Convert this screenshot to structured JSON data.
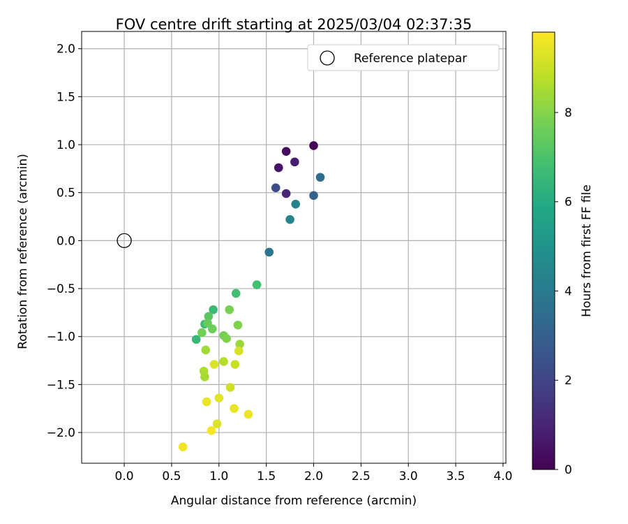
{
  "chart_data": {
    "type": "scatter",
    "title": "FOV centre drift starting at 2025/03/04 02:37:35",
    "xlabel": "Angular distance from reference (arcmin)",
    "ylabel": "Rotation from reference (arcmin)",
    "xlim": [
      -0.45,
      4.03
    ],
    "ylim": [
      -2.32,
      2.18
    ],
    "xticks": [
      0.0,
      0.5,
      1.0,
      1.5,
      2.0,
      2.5,
      3.0,
      3.5,
      4.0
    ],
    "xtick_labels": [
      "0.0",
      "0.5",
      "1.0",
      "1.5",
      "2.0",
      "2.5",
      "3.0",
      "3.5",
      "4.0"
    ],
    "yticks": [
      -2.0,
      -1.5,
      -1.0,
      -0.5,
      0.0,
      0.5,
      1.0,
      1.5,
      2.0
    ],
    "ytick_labels": [
      "−2.0",
      "−1.5",
      "−1.0",
      "−0.5",
      "0.0",
      "0.5",
      "1.0",
      "1.5",
      "2.0"
    ],
    "grid": true,
    "legend": {
      "position": "top-right",
      "entries": [
        "Reference platepar"
      ]
    },
    "reference_point": {
      "x": 0.0,
      "y": 0.0,
      "label": "Reference platepar"
    },
    "colorbar": {
      "label": "Hours from first FF file",
      "colormap": "viridis",
      "range": [
        0,
        9.8
      ],
      "ticks": [
        0,
        2,
        4,
        6,
        8
      ],
      "tick_labels": [
        "0",
        "2",
        "4",
        "6",
        "8"
      ]
    },
    "points": [
      {
        "x": 2.0,
        "y": 0.99,
        "c": 0.1
      },
      {
        "x": 1.71,
        "y": 0.93,
        "c": 0.3
      },
      {
        "x": 1.63,
        "y": 0.76,
        "c": 0.5
      },
      {
        "x": 1.8,
        "y": 0.82,
        "c": 0.8
      },
      {
        "x": 1.71,
        "y": 0.49,
        "c": 1.0
      },
      {
        "x": 1.6,
        "y": 0.55,
        "c": 2.3
      },
      {
        "x": 2.0,
        "y": 0.47,
        "c": 3.0
      },
      {
        "x": 2.07,
        "y": 0.66,
        "c": 3.5
      },
      {
        "x": 1.81,
        "y": 0.38,
        "c": 4.3
      },
      {
        "x": 1.75,
        "y": 0.22,
        "c": 4.4
      },
      {
        "x": 1.53,
        "y": -0.12,
        "c": 3.8
      },
      {
        "x": 1.4,
        "y": -0.46,
        "c": 6.8
      },
      {
        "x": 1.18,
        "y": -0.55,
        "c": 6.8
      },
      {
        "x": 0.94,
        "y": -0.72,
        "c": 6.6
      },
      {
        "x": 1.11,
        "y": -0.72,
        "c": 7.8
      },
      {
        "x": 0.89,
        "y": -0.79,
        "c": 7.3
      },
      {
        "x": 0.85,
        "y": -0.87,
        "c": 6.7
      },
      {
        "x": 0.88,
        "y": -0.86,
        "c": 7.5
      },
      {
        "x": 0.93,
        "y": -0.92,
        "c": 7.6
      },
      {
        "x": 1.2,
        "y": -0.88,
        "c": 7.9
      },
      {
        "x": 0.76,
        "y": -1.03,
        "c": 6.5
      },
      {
        "x": 0.82,
        "y": -0.96,
        "c": 7.7
      },
      {
        "x": 1.05,
        "y": -0.99,
        "c": 7.7
      },
      {
        "x": 1.08,
        "y": -1.02,
        "c": 7.9
      },
      {
        "x": 1.22,
        "y": -1.08,
        "c": 8.3
      },
      {
        "x": 0.86,
        "y": -1.14,
        "c": 8.4
      },
      {
        "x": 1.21,
        "y": -1.15,
        "c": 9.2
      },
      {
        "x": 1.05,
        "y": -1.26,
        "c": 8.7
      },
      {
        "x": 0.95,
        "y": -1.29,
        "c": 9.3
      },
      {
        "x": 1.17,
        "y": -1.29,
        "c": 9.0
      },
      {
        "x": 0.84,
        "y": -1.36,
        "c": 8.6
      },
      {
        "x": 0.85,
        "y": -1.42,
        "c": 8.5
      },
      {
        "x": 1.12,
        "y": -1.53,
        "c": 9.1
      },
      {
        "x": 1.0,
        "y": -1.64,
        "c": 9.4
      },
      {
        "x": 0.87,
        "y": -1.68,
        "c": 9.5
      },
      {
        "x": 1.16,
        "y": -1.75,
        "c": 9.5
      },
      {
        "x": 1.31,
        "y": -1.81,
        "c": 9.6
      },
      {
        "x": 0.98,
        "y": -1.91,
        "c": 9.3
      },
      {
        "x": 0.92,
        "y": -1.98,
        "c": 9.7
      },
      {
        "x": 0.62,
        "y": -2.15,
        "c": 9.6
      }
    ]
  }
}
